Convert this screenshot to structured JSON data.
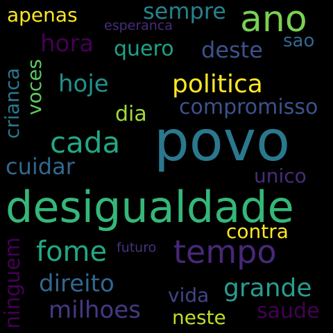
{
  "words": [
    {
      "text": "povo",
      "color": "#2a788e",
      "rotated": false
    },
    {
      "text": "desigualdade",
      "color": "#35b779",
      "rotated": false
    },
    {
      "text": "ano",
      "color": "#7ad151",
      "rotated": false
    },
    {
      "text": "tempo",
      "color": "#482878",
      "rotated": false
    },
    {
      "text": "politica",
      "color": "#fde725",
      "rotated": false
    },
    {
      "text": "cada",
      "color": "#22a884",
      "rotated": false
    },
    {
      "text": "fome",
      "color": "#22a884",
      "rotated": false
    },
    {
      "text": "grande",
      "color": "#2a9d8f",
      "rotated": false
    },
    {
      "text": "direito",
      "color": "#31688e",
      "rotated": false
    },
    {
      "text": "milhoes",
      "color": "#443983",
      "rotated": false
    },
    {
      "text": "sempre",
      "color": "#26828e",
      "rotated": false
    },
    {
      "text": "deste",
      "color": "#3b528b",
      "rotated": false
    },
    {
      "text": "hoje",
      "color": "#21918c",
      "rotated": false
    },
    {
      "text": "compromisso",
      "color": "#3b528b",
      "rotated": false
    },
    {
      "text": "cuidar",
      "color": "#31688e",
      "rotated": false
    },
    {
      "text": "contra",
      "color": "#fde725",
      "rotated": false
    },
    {
      "text": "quero",
      "color": "#1fa187",
      "rotated": false
    },
    {
      "text": "apenas",
      "color": "#fde725",
      "rotated": false
    },
    {
      "text": "hora",
      "color": "#440154",
      "rotated": false
    },
    {
      "text": "dia",
      "color": "#a0da39",
      "rotated": false
    },
    {
      "text": "unico",
      "color": "#472d7b",
      "rotated": false
    },
    {
      "text": "vida",
      "color": "#414487",
      "rotated": false
    },
    {
      "text": "neste",
      "color": "#bddf26",
      "rotated": false
    },
    {
      "text": "saude",
      "color": "#440154",
      "rotated": false
    },
    {
      "text": "sao",
      "color": "#31688e",
      "rotated": false
    },
    {
      "text": "esperanca",
      "color": "#472d7b",
      "rotated": false
    },
    {
      "text": "futuro",
      "color": "#46327e",
      "rotated": false
    },
    {
      "text": "crianca",
      "color": "#2a788e",
      "rotated": true
    },
    {
      "text": "voces",
      "color": "#5ec962",
      "rotated": true
    },
    {
      "text": "ninguem",
      "color": "#440154",
      "rotated": true
    }
  ]
}
